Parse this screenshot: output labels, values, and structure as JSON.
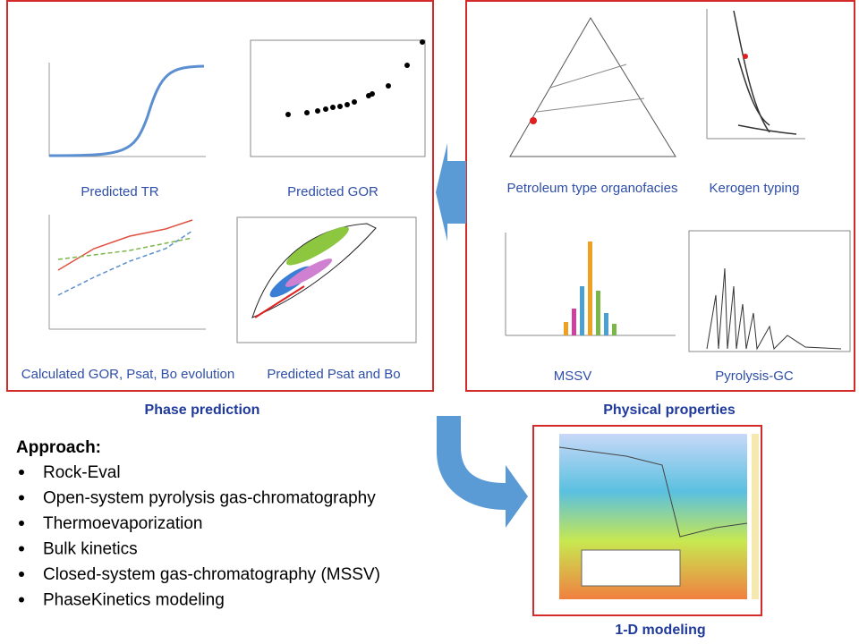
{
  "sections": [
    {
      "title": "Phase prediction",
      "captions": [
        "Predicted TR",
        "Predicted GOR",
        "Calculated GOR, Psat, Bo evolution",
        "Predicted Psat and Bo"
      ]
    },
    {
      "title": "Physical properties",
      "captions": [
        "Petroleum type organofacies",
        "Kerogen typing",
        "MSSV",
        "Pyrolysis-GC"
      ]
    },
    {
      "title": "1-D modeling",
      "captions": []
    }
  ],
  "approach": {
    "heading": "Approach:",
    "items": [
      "Rock-Eval",
      "Open-system pyrolysis gas-chromatography",
      "Thermoevaporization",
      "Bulk kinetics",
      "Closed-system gas-chromatography (MSSV)",
      "PhaseKinetics modeling"
    ]
  }
}
